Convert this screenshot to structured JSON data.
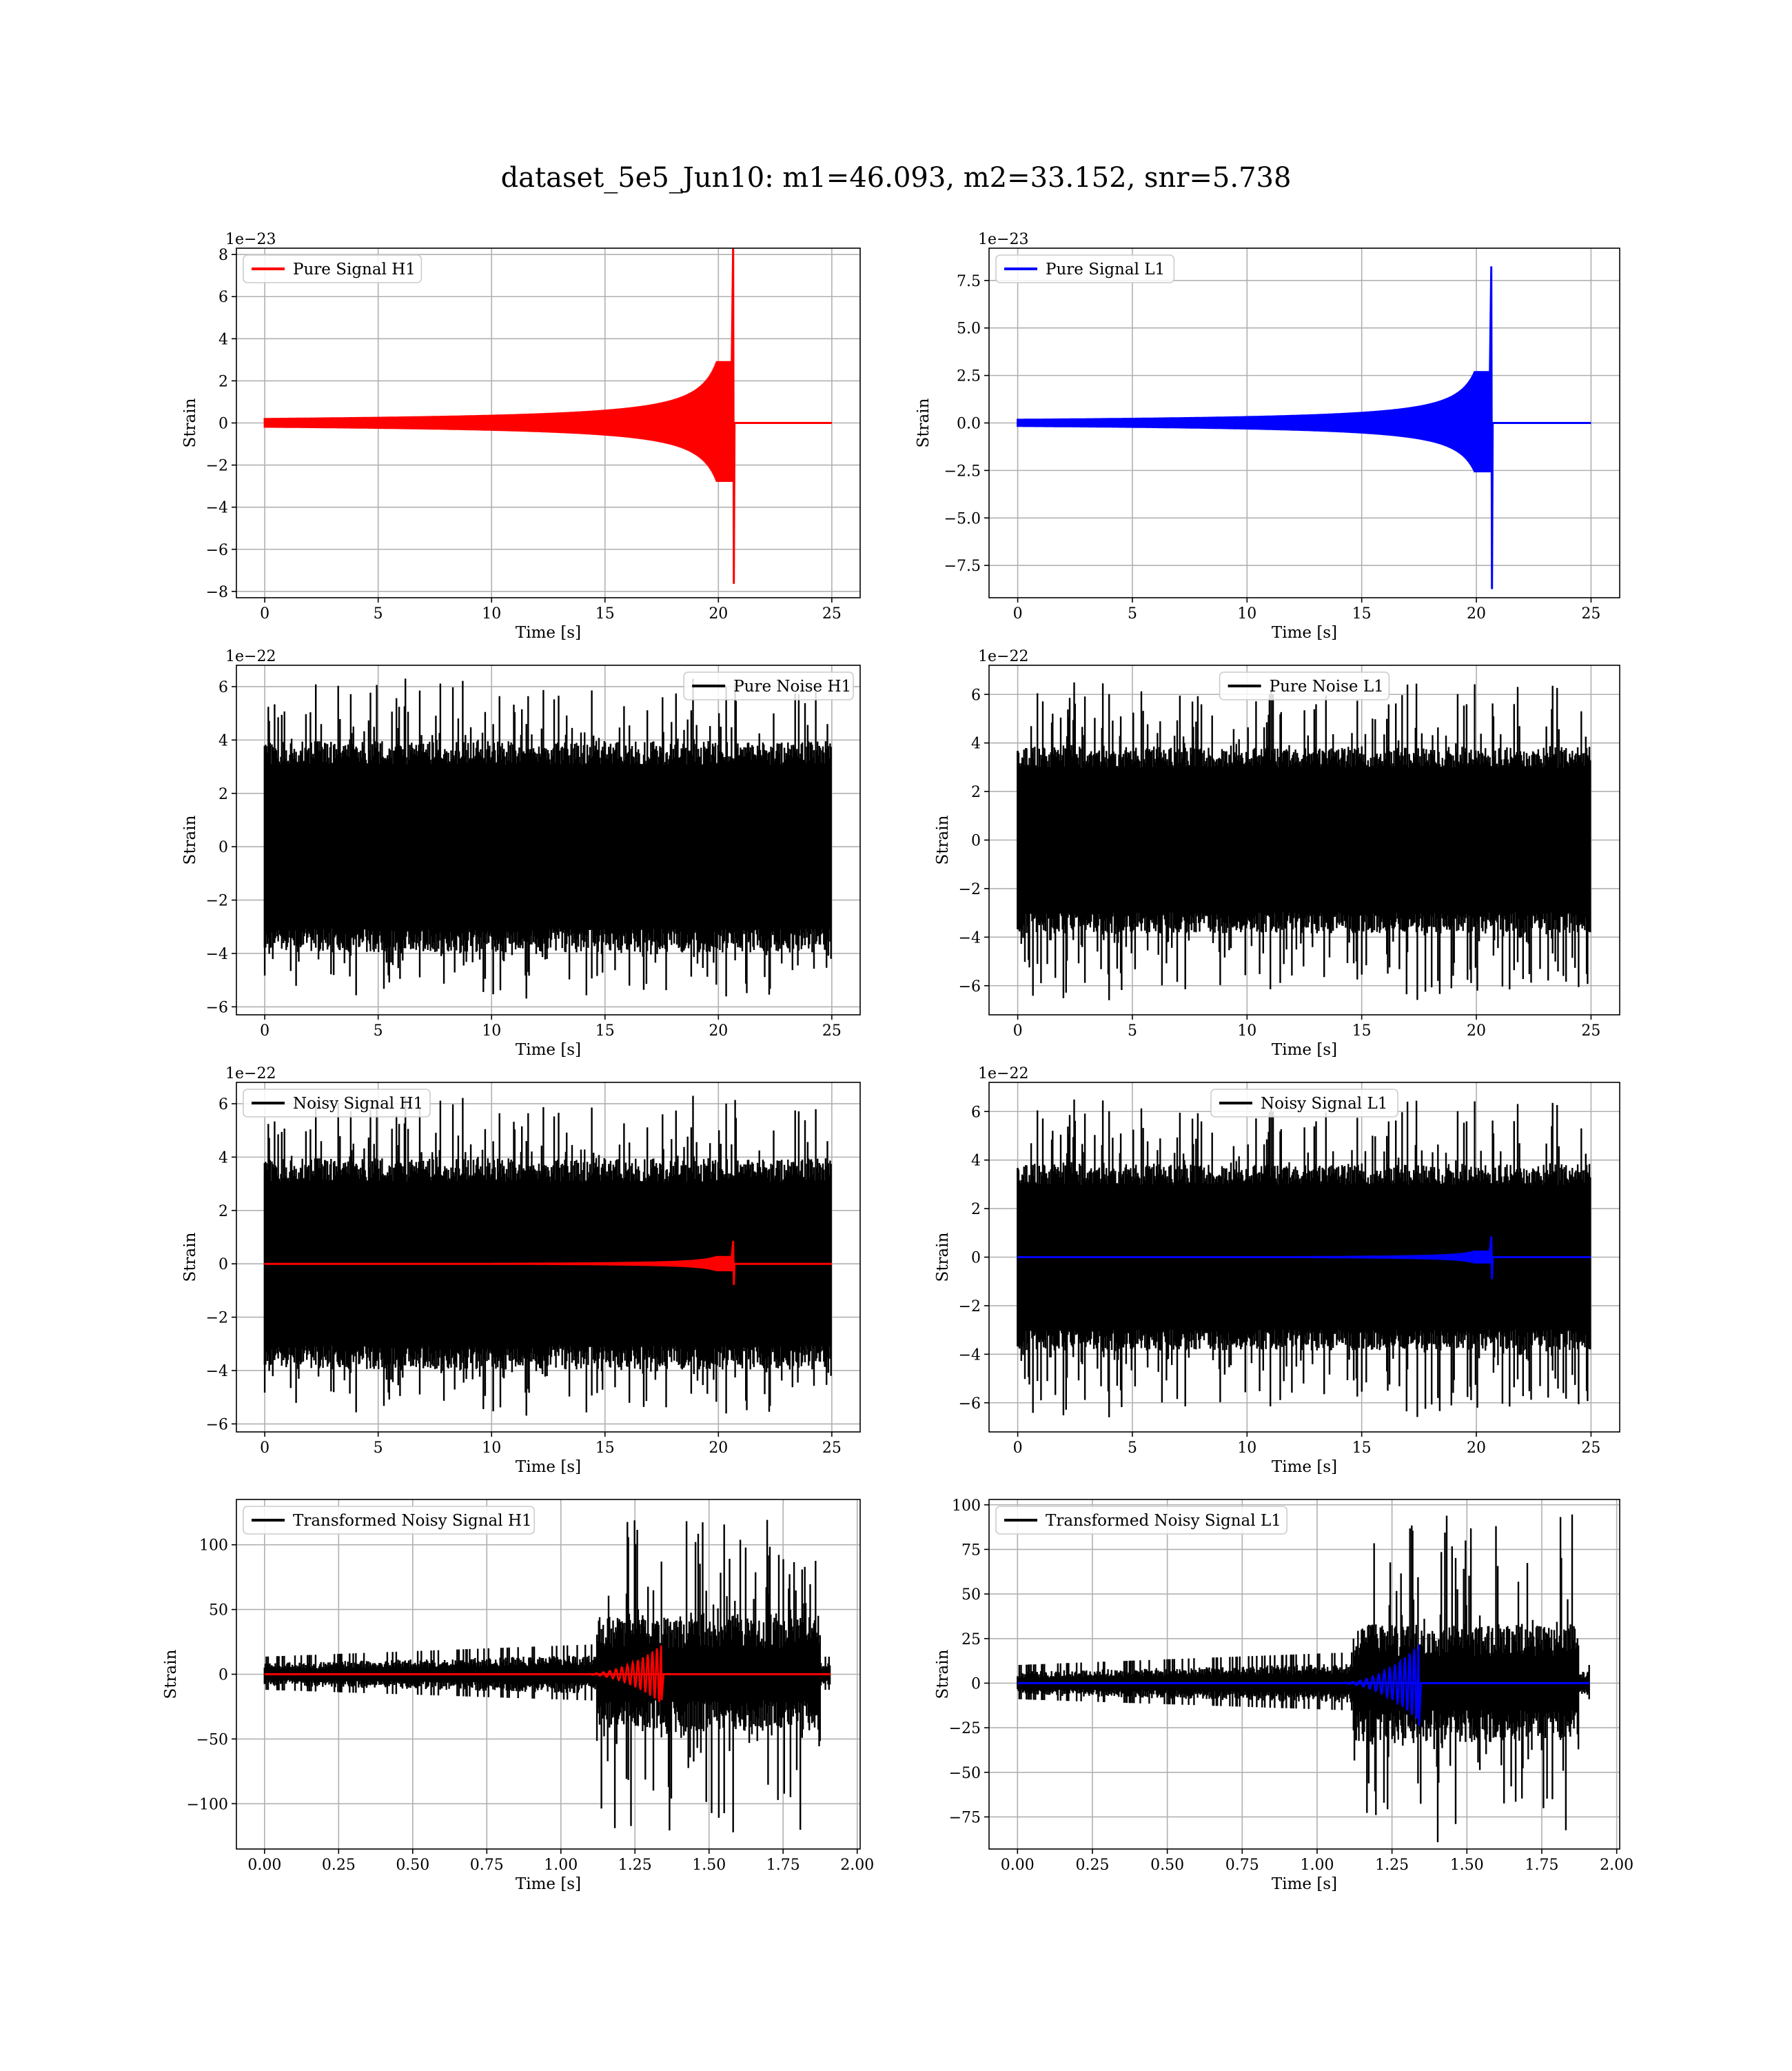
{
  "figure": {
    "title": "dataset_5e5_Jun10: m1=46.093, m2=33.152, snr=5.738"
  },
  "chart_data": [
    {
      "id": "pure-signal-h1",
      "type": "line",
      "xlabel": "Time [s]",
      "ylabel": "Strain",
      "offset_text": "1e−23",
      "xlim": [
        -1.25,
        26.25
      ],
      "ylim": [
        -8.3,
        8.3
      ],
      "xticks": [
        0,
        5,
        10,
        15,
        20,
        25
      ],
      "xtick_labels": [
        "0",
        "5",
        "10",
        "15",
        "20",
        "25"
      ],
      "yticks": [
        8,
        6,
        4,
        2,
        0,
        -2,
        -4,
        -6,
        -8
      ],
      "ytick_labels": [
        "8",
        "6",
        "4",
        "2",
        "0",
        "−2",
        "−4",
        "−6",
        "−8"
      ],
      "grid": true,
      "legend": "upper left",
      "series": [
        {
          "name": "Pure Signal H1",
          "color": "#ff0000",
          "kind": "chirp",
          "x_start": 0,
          "x_end": 25,
          "merger_x": 20.65,
          "amp_peak": 8.3,
          "amp_min": -7.6,
          "amp_body": 2.8
        }
      ]
    },
    {
      "id": "pure-signal-l1",
      "type": "line",
      "xlabel": "Time [s]",
      "ylabel": "Strain",
      "offset_text": "1e−23",
      "xlim": [
        -1.25,
        26.25
      ],
      "ylim": [
        -9.2,
        9.2
      ],
      "xticks": [
        0,
        5,
        10,
        15,
        20,
        25
      ],
      "xtick_labels": [
        "0",
        "5",
        "10",
        "15",
        "20",
        "25"
      ],
      "yticks": [
        7.5,
        5.0,
        2.5,
        0.0,
        -2.5,
        -5.0,
        -7.5
      ],
      "ytick_labels": [
        "7.5",
        "5.0",
        "2.5",
        "0.0",
        "−2.5",
        "−5.0",
        "−7.5"
      ],
      "grid": true,
      "legend": "upper left",
      "series": [
        {
          "name": "Pure Signal L1",
          "color": "#0000ff",
          "kind": "chirp",
          "x_start": 0,
          "x_end": 25,
          "merger_x": 20.65,
          "amp_peak": 8.2,
          "amp_min": -8.7,
          "amp_body": 2.6
        }
      ]
    },
    {
      "id": "pure-noise-h1",
      "type": "line",
      "xlabel": "Time [s]",
      "ylabel": "Strain",
      "offset_text": "1e−22",
      "xlim": [
        -1.25,
        26.25
      ],
      "ylim": [
        -6.3,
        6.8
      ],
      "xticks": [
        0,
        5,
        10,
        15,
        20,
        25
      ],
      "xtick_labels": [
        "0",
        "5",
        "10",
        "15",
        "20",
        "25"
      ],
      "yticks": [
        6,
        4,
        2,
        0,
        -2,
        -4,
        -6
      ],
      "ytick_labels": [
        "6",
        "4",
        "2",
        "0",
        "−2",
        "−4",
        "−6"
      ],
      "grid": true,
      "legend": "upper right",
      "series": [
        {
          "name": "Pure Noise H1",
          "color": "#000000",
          "kind": "noise",
          "x_start": 0,
          "x_end": 25,
          "band": 3.6,
          "spike_max": 6.3,
          "spike_min": -5.7,
          "seed": 11
        }
      ]
    },
    {
      "id": "pure-noise-l1",
      "type": "line",
      "xlabel": "Time [s]",
      "ylabel": "Strain",
      "offset_text": "1e−22",
      "xlim": [
        -1.25,
        26.25
      ],
      "ylim": [
        -7.2,
        7.2
      ],
      "xticks": [
        0,
        5,
        10,
        15,
        20,
        25
      ],
      "xtick_labels": [
        "0",
        "5",
        "10",
        "15",
        "20",
        "25"
      ],
      "yticks": [
        6,
        4,
        2,
        0,
        -2,
        -4,
        -6
      ],
      "ytick_labels": [
        "6",
        "4",
        "2",
        "0",
        "−2",
        "−4",
        "−6"
      ],
      "grid": true,
      "legend": "upper center",
      "series": [
        {
          "name": "Pure Noise L1",
          "color": "#000000",
          "kind": "noise",
          "x_start": 0,
          "x_end": 25,
          "band": 3.5,
          "spike_max": 6.5,
          "spike_min": -6.6,
          "seed": 23
        }
      ]
    },
    {
      "id": "noisy-signal-h1",
      "type": "line",
      "xlabel": "Time [s]",
      "ylabel": "Strain",
      "offset_text": "1e−22",
      "xlim": [
        -1.25,
        26.25
      ],
      "ylim": [
        -6.3,
        6.8
      ],
      "xticks": [
        0,
        5,
        10,
        15,
        20,
        25
      ],
      "xtick_labels": [
        "0",
        "5",
        "10",
        "15",
        "20",
        "25"
      ],
      "yticks": [
        6,
        4,
        2,
        0,
        -2,
        -4,
        -6
      ],
      "ytick_labels": [
        "6",
        "4",
        "2",
        "0",
        "−2",
        "−4",
        "−6"
      ],
      "grid": true,
      "legend": "upper left",
      "series": [
        {
          "name": "Noisy Signal H1",
          "color": "#000000",
          "kind": "noise",
          "x_start": 0,
          "x_end": 25,
          "band": 3.6,
          "spike_max": 6.3,
          "spike_min": -5.7,
          "seed": 11
        },
        {
          "name": "",
          "color": "#ff0000",
          "kind": "chirp",
          "x_start": 0,
          "x_end": 25,
          "merger_x": 20.65,
          "amp_peak": 0.83,
          "amp_min": -0.76,
          "amp_body": 0.28
        }
      ]
    },
    {
      "id": "noisy-signal-l1",
      "type": "line",
      "xlabel": "Time [s]",
      "ylabel": "Strain",
      "offset_text": "1e−22",
      "xlim": [
        -1.25,
        26.25
      ],
      "ylim": [
        -7.2,
        7.2
      ],
      "xticks": [
        0,
        5,
        10,
        15,
        20,
        25
      ],
      "xtick_labels": [
        "0",
        "5",
        "10",
        "15",
        "20",
        "25"
      ],
      "yticks": [
        6,
        4,
        2,
        0,
        -2,
        -4,
        -6
      ],
      "ytick_labels": [
        "6",
        "4",
        "2",
        "0",
        "−2",
        "−4",
        "−6"
      ],
      "grid": true,
      "legend": "upper center",
      "series": [
        {
          "name": "Noisy Signal L1",
          "color": "#000000",
          "kind": "noise",
          "x_start": 0,
          "x_end": 25,
          "band": 3.5,
          "spike_max": 6.5,
          "spike_min": -6.6,
          "seed": 23
        },
        {
          "name": "",
          "color": "#0000ff",
          "kind": "chirp",
          "x_start": 0,
          "x_end": 25,
          "merger_x": 20.65,
          "amp_peak": 0.82,
          "amp_min": -0.87,
          "amp_body": 0.26
        }
      ]
    },
    {
      "id": "transformed-noisy-signal-h1",
      "type": "line",
      "xlabel": "Time [s]",
      "ylabel": "Strain",
      "offset_text": "",
      "xlim": [
        -0.095,
        2.01
      ],
      "ylim": [
        -135,
        135
      ],
      "xticks": [
        0.0,
        0.25,
        0.5,
        0.75,
        1.0,
        1.25,
        1.5,
        1.75,
        2.0
      ],
      "xtick_labels": [
        "0.00",
        "0.25",
        "0.50",
        "0.75",
        "1.00",
        "1.25",
        "1.50",
        "1.75",
        "2.00"
      ],
      "yticks": [
        100,
        50,
        0,
        -50,
        -100
      ],
      "ytick_labels": [
        "100",
        "50",
        "0",
        "−50",
        "−100"
      ],
      "grid": true,
      "legend": "upper left",
      "series": [
        {
          "name": "Transformed Noisy Signal H1",
          "color": "#000000",
          "kind": "whitened",
          "x_start": 0,
          "x_end": 1.91,
          "jump_x": 1.12,
          "drop_x": 1.875,
          "band_early": 8,
          "band_late": 40,
          "spike_max": 120,
          "spike_min": -123,
          "seed": 5
        },
        {
          "name": "",
          "color": "#ff0000",
          "kind": "chirp_whitened",
          "x_start": 0,
          "x_end": 1.91,
          "merger_x": 1.34,
          "amp_peak": 23,
          "amp_min": -20
        }
      ]
    },
    {
      "id": "transformed-noisy-signal-l1",
      "type": "line",
      "xlabel": "Time [s]",
      "ylabel": "Strain",
      "offset_text": "",
      "xlim": [
        -0.095,
        2.01
      ],
      "ylim": [
        -93,
        103
      ],
      "xticks": [
        0.0,
        0.25,
        0.5,
        0.75,
        1.0,
        1.25,
        1.5,
        1.75,
        2.0
      ],
      "xtick_labels": [
        "0.00",
        "0.25",
        "0.50",
        "0.75",
        "1.00",
        "1.25",
        "1.50",
        "1.75",
        "2.00"
      ],
      "yticks": [
        100,
        75,
        50,
        25,
        0,
        -25,
        -50,
        -75
      ],
      "ytick_labels": [
        "100",
        "75",
        "50",
        "25",
        "0",
        "−25",
        "−50",
        "−75"
      ],
      "grid": true,
      "legend": "upper left",
      "series": [
        {
          "name": "Transformed Noisy Signal L1",
          "color": "#000000",
          "kind": "whitened",
          "x_start": 0,
          "x_end": 1.91,
          "jump_x": 1.12,
          "drop_x": 1.875,
          "band_early": 6,
          "band_late": 30,
          "spike_max": 100,
          "spike_min": -90,
          "seed": 9
        },
        {
          "name": "",
          "color": "#0000ff",
          "kind": "chirp_whitened",
          "x_start": 0,
          "x_end": 1.91,
          "merger_x": 1.34,
          "amp_peak": 22,
          "amp_min": -24
        }
      ]
    }
  ]
}
